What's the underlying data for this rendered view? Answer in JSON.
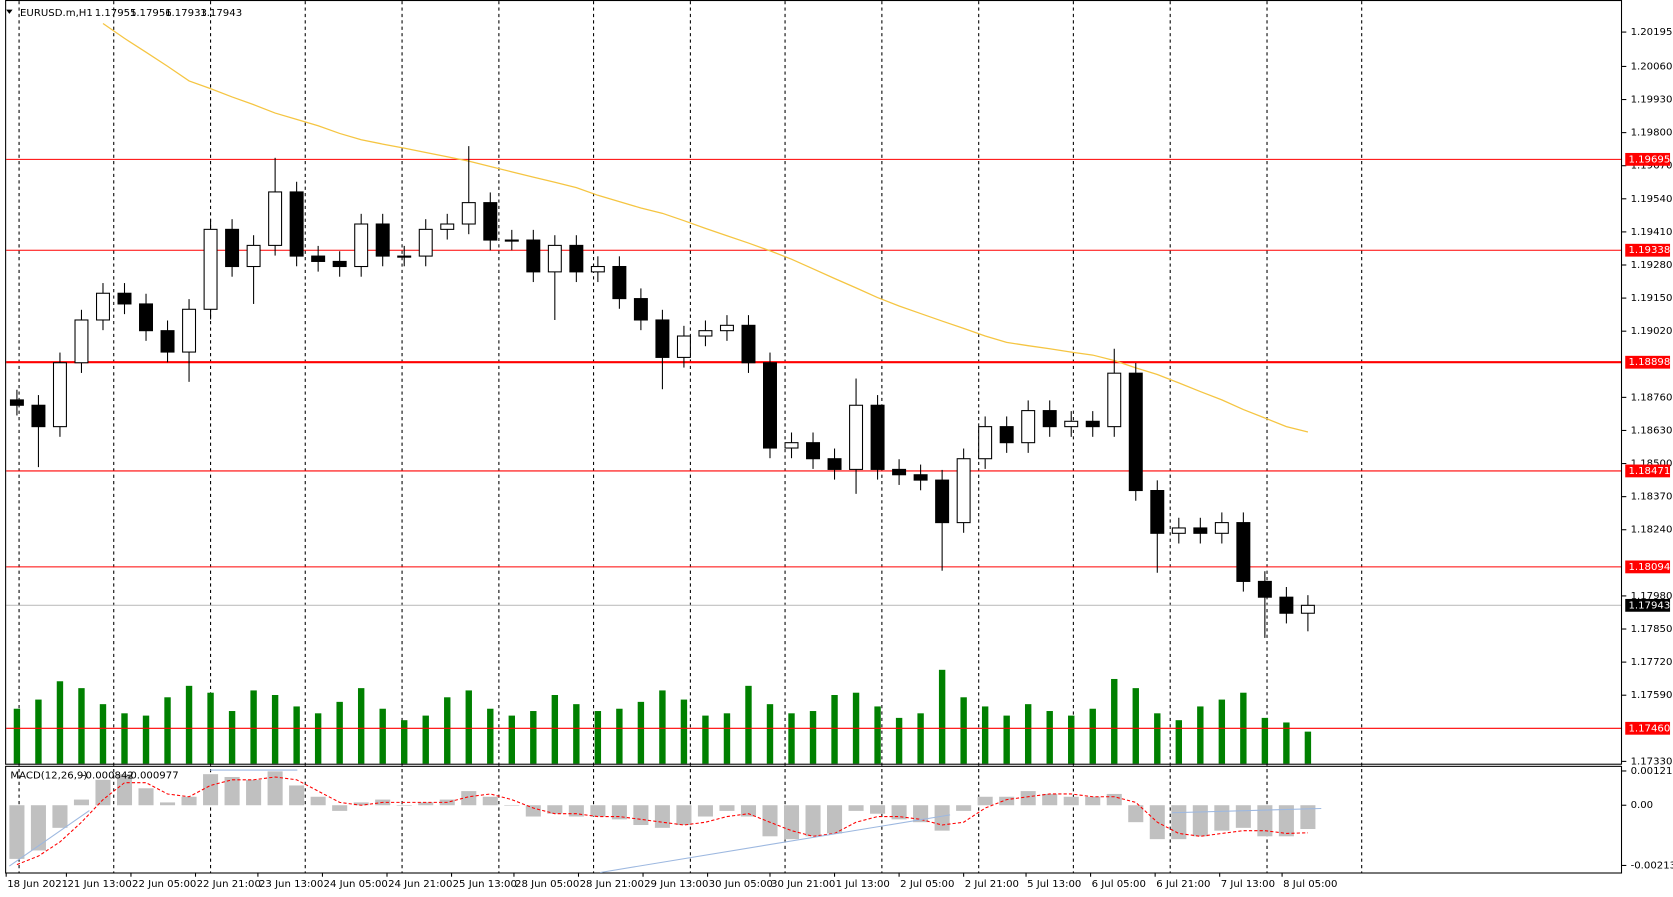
{
  "chart_data": {
    "type": "candlestick",
    "title": "EURUSD.m,H1",
    "header_ohlc": [
      1.17955,
      1.17956,
      1.17933,
      1.17943
    ],
    "color_up": "#ffffff",
    "color_down": "#000000",
    "candles": {
      "open": [
        1.1875,
        1.18729,
        1.18645,
        1.18896,
        1.19064,
        1.19169,
        1.19127,
        1.19022,
        1.18938,
        1.19106,
        1.1942,
        1.19274,
        1.19357,
        1.19567,
        1.19315,
        1.19294,
        1.19274,
        1.19441,
        1.19315,
        1.19315,
        1.1942,
        1.19441,
        1.19525,
        1.19378,
        1.19378,
        1.19253,
        1.19357,
        1.19253,
        1.19274,
        1.19148,
        1.19064,
        1.18917,
        1.19001,
        1.19022,
        1.19043,
        1.18896,
        1.18561,
        1.18582,
        1.18519,
        1.18477,
        1.18729,
        1.18477,
        1.18456,
        1.18435,
        1.18268,
        1.18519,
        1.18645,
        1.18582,
        1.18708,
        1.18645,
        1.18666,
        1.18645,
        1.18855,
        1.18394,
        1.18226,
        1.18247,
        1.18226,
        1.18268,
        1.18037,
        1.17975,
        1.17912
      ],
      "high": [
        1.1879,
        1.18769,
        1.18936,
        1.19104,
        1.19209,
        1.19209,
        1.19167,
        1.19062,
        1.19146,
        1.1946,
        1.1946,
        1.19397,
        1.19701,
        1.19607,
        1.19355,
        1.19334,
        1.19481,
        1.19481,
        1.19355,
        1.1946,
        1.19481,
        1.19747,
        1.19565,
        1.19418,
        1.19418,
        1.19397,
        1.19397,
        1.19314,
        1.19314,
        1.19188,
        1.19104,
        1.19041,
        1.19062,
        1.19083,
        1.19083,
        1.18936,
        1.18622,
        1.18622,
        1.18559,
        1.18834,
        1.18769,
        1.18517,
        1.18496,
        1.18475,
        1.18559,
        1.18685,
        1.18685,
        1.18748,
        1.18748,
        1.18706,
        1.18706,
        1.18951,
        1.18895,
        1.18434,
        1.18287,
        1.18287,
        1.18308,
        1.18308,
        1.18077,
        1.18015,
        1.17983
      ],
      "low": [
        1.18689,
        1.18486,
        1.18605,
        1.18856,
        1.19024,
        1.19087,
        1.18982,
        1.18898,
        1.18821,
        1.19066,
        1.19234,
        1.19127,
        1.19317,
        1.19275,
        1.19254,
        1.19234,
        1.19234,
        1.19275,
        1.19275,
        1.19275,
        1.1938,
        1.19401,
        1.19338,
        1.19338,
        1.19213,
        1.19064,
        1.19213,
        1.19213,
        1.19108,
        1.19024,
        1.18792,
        1.18877,
        1.18961,
        1.18982,
        1.18856,
        1.18521,
        1.18521,
        1.18479,
        1.18437,
        1.18381,
        1.18437,
        1.18416,
        1.18395,
        1.18079,
        1.18228,
        1.18479,
        1.18542,
        1.18542,
        1.18605,
        1.18605,
        1.18605,
        1.18605,
        1.18354,
        1.18071,
        1.18186,
        1.18186,
        1.18186,
        1.17997,
        1.17815,
        1.17872,
        1.17841
      ],
      "close": [
        1.18729,
        1.18645,
        1.18896,
        1.19064,
        1.19169,
        1.19127,
        1.19022,
        1.18938,
        1.19106,
        1.1942,
        1.19274,
        1.19357,
        1.19567,
        1.19315,
        1.19294,
        1.19274,
        1.19441,
        1.19315,
        1.19315,
        1.1942,
        1.19441,
        1.19525,
        1.19378,
        1.19378,
        1.19253,
        1.19357,
        1.19253,
        1.19274,
        1.19148,
        1.19064,
        1.18917,
        1.19001,
        1.19022,
        1.19043,
        1.18896,
        1.18561,
        1.18582,
        1.18519,
        1.18477,
        1.18729,
        1.18477,
        1.18456,
        1.18435,
        1.18268,
        1.18519,
        1.18645,
        1.18582,
        1.18708,
        1.18645,
        1.18666,
        1.18645,
        1.18855,
        1.18394,
        1.18226,
        1.18247,
        1.18226,
        1.18268,
        1.18037,
        1.17975,
        1.17912,
        1.17943
      ]
    },
    "xlim": [
      -0.5,
      74.6
    ],
    "xticks": [
      {
        "value": -0.5,
        "label": "18 Jun 2021"
      },
      {
        "value": 2.3,
        "label": "21 Jun 13:00"
      },
      {
        "value": 5.3,
        "label": "22 Jun 05:00"
      },
      {
        "value": 8.3,
        "label": "22 Jun 21:00"
      },
      {
        "value": 11.2,
        "label": "23 Jun 13:00"
      },
      {
        "value": 14.2,
        "label": "24 Jun 05:00"
      },
      {
        "value": 17.2,
        "label": "24 Jun 21:00"
      },
      {
        "value": 20.2,
        "label": "25 Jun 13:00"
      },
      {
        "value": 23.1,
        "label": "28 Jun 05:00"
      },
      {
        "value": 26.1,
        "label": "28 Jun 21:00"
      },
      {
        "value": 29.1,
        "label": "29 Jun 13:00"
      },
      {
        "value": 32.1,
        "label": "30 Jun 05:00"
      },
      {
        "value": 35.0,
        "label": "30 Jun 21:00"
      },
      {
        "value": 38.0,
        "label": "1 Jul 13:00"
      },
      {
        "value": 41.0,
        "label": "2 Jul 05:00"
      },
      {
        "value": 44.0,
        "label": "2 Jul 21:00"
      },
      {
        "value": 46.9,
        "label": "5 Jul 13:00"
      },
      {
        "value": 49.9,
        "label": "6 Jul 05:00"
      },
      {
        "value": 52.9,
        "label": "6 Jul 21:00"
      },
      {
        "value": 55.9,
        "label": "7 Jul 13:00"
      },
      {
        "value": 58.8,
        "label": "8 Jul 05:00"
      }
    ],
    "xgrid": [
      0.1,
      4.5,
      9.0,
      13.4,
      17.9,
      22.4,
      26.8,
      31.3,
      35.7,
      40.2,
      44.7,
      49.1,
      53.6,
      58.1,
      62.5
    ],
    "ylim": [
      1.17321,
      1.20321
    ],
    "yticks": [
      1.20195,
      {
        "value": 1.2006,
        "label": "1.20060"
      },
      {
        "value": 1.1993,
        "label": "1.19930"
      },
      {
        "value": 1.198,
        "label": "1.19800"
      },
      {
        "value": 1.1967,
        "label": "1.19670"
      },
      {
        "value": 1.1954,
        "label": "1.19540"
      },
      {
        "value": 1.1941,
        "label": "1.19410"
      },
      {
        "value": 1.1928,
        "label": "1.19280"
      },
      {
        "value": 1.1915,
        "label": "1.19150"
      },
      {
        "value": 1.1902,
        "label": "1.19020"
      },
      {
        "value": 1.1876,
        "label": "1.18760"
      },
      {
        "value": 1.1863,
        "label": "1.18630"
      },
      {
        "value": 1.185,
        "label": "1.18500"
      },
      {
        "value": 1.1837,
        "label": "1.18370"
      },
      {
        "value": 1.1824,
        "label": "1.18240"
      },
      {
        "value": 1.1798,
        "label": "1.17980"
      },
      {
        "value": 1.1785,
        "label": "1.17850"
      },
      {
        "value": 1.1772,
        "label": "1.17720"
      },
      {
        "value": 1.1759,
        "label": "1.17590"
      },
      {
        "value": 1.1733,
        "label": "1.17330"
      }
    ],
    "levels": {
      "color": "#ff0000",
      "values": [
        1.19695,
        1.19338,
        1.18898,
        1.18471,
        1.18094,
        {
          "value": 1.1746,
          "label": "1.17460"
        }
      ]
    },
    "moving_average": {
      "color": "#f5c542",
      "values": [
        null,
        null,
        null,
        null,
        1.20229,
        1.2017,
        1.20116,
        1.20061,
        1.20003,
        1.19973,
        1.1994,
        1.1991,
        1.19877,
        1.19852,
        1.19827,
        1.19797,
        1.19772,
        1.19755,
        1.19739,
        1.19722,
        1.19705,
        1.19688,
        1.19667,
        1.19646,
        1.19625,
        1.19605,
        1.19584,
        1.19554,
        1.19529,
        1.19504,
        1.19483,
        1.19454,
        1.19424,
        1.19395,
        1.19366,
        1.19336,
        1.19303,
        1.19265,
        1.19227,
        1.1919,
        1.19152,
        1.19119,
        1.19089,
        1.1906,
        1.19031,
        1.19001,
        1.18976,
        1.18963,
        1.18951,
        1.18938,
        1.18926,
        1.18905,
        1.18876,
        1.1885,
        1.18817,
        1.18783,
        1.1875,
        1.18712,
        1.18679,
        1.18645,
        1.18624
      ]
    },
    "volume": {
      "color": "#008000",
      "values": [
        2400,
        2800,
        3600,
        3300,
        2600,
        2200,
        2100,
        2900,
        3400,
        3100,
        2300,
        3200,
        3000,
        2500,
        2200,
        2700,
        3300,
        2400,
        1900,
        2100,
        2900,
        3200,
        2400,
        2100,
        2300,
        3000,
        2600,
        2300,
        2400,
        2700,
        3200,
        2800,
        2100,
        2200,
        3400,
        2600,
        2200,
        2300,
        3000,
        3100,
        2500,
        2000,
        2200,
        4100,
        2900,
        2500,
        2100,
        2600,
        2300,
        2100,
        2400,
        3700,
        3300,
        2200,
        1900,
        2500,
        2800,
        3100,
        2000,
        1800,
        1400
      ]
    },
    "macd": {
      "title": "MACD(12,26,9)",
      "ylim": [
        -0.00238,
        0.00132
      ],
      "yticks": [
        0.001213,
        {
          "value": 0,
          "label": "0.00"
        },
        -0.002132
      ],
      "histogram": {
        "color": "#c0c0c0",
        "values": [
          -0.0019,
          -0.0016,
          -0.0008,
          0.0002,
          0.0009,
          0.0011,
          0.0006,
          0.0001,
          0.0003,
          0.0011,
          0.001,
          0.0009,
          0.0012,
          0.0007,
          0.0003,
          -0.0002,
          0.0001,
          0.0002,
          0.0,
          0.0001,
          0.0002,
          0.0005,
          0.0003,
          0.0,
          -0.0004,
          -0.0003,
          -0.0004,
          -0.0004,
          -0.0005,
          -0.0007,
          -0.0008,
          -0.0007,
          -0.0004,
          -0.0002,
          -0.0004,
          -0.0011,
          -0.0012,
          -0.0011,
          -0.001,
          -0.0002,
          -0.0003,
          -0.0005,
          -0.0006,
          -0.0009,
          -0.0002,
          0.0003,
          0.0003,
          0.0005,
          0.0004,
          0.0003,
          0.0003,
          0.0004,
          -0.0006,
          -0.0012,
          -0.0012,
          -0.0011,
          -0.0009,
          -0.0008,
          -0.0011,
          -0.0011,
          -0.000842
        ]
      },
      "signal": {
        "color": "#ff0000",
        "values": [
          -0.0021,
          -0.0018,
          -0.0013,
          -0.0006,
          0.0002,
          0.0008,
          0.0008,
          0.0004,
          0.0003,
          0.0007,
          0.0009,
          0.0009,
          0.001,
          0.0009,
          0.0005,
          0.0001,
          0.0,
          0.0001,
          0.0001,
          0.0001,
          0.0001,
          0.0003,
          0.0004,
          0.0002,
          -0.0001,
          -0.0003,
          -0.0003,
          -0.0004,
          -0.0004,
          -0.0005,
          -0.0006,
          -0.0007,
          -0.0006,
          -0.0004,
          -0.0003,
          -0.0006,
          -0.0009,
          -0.0011,
          -0.001,
          -0.0006,
          -0.0004,
          -0.0004,
          -0.0005,
          -0.0007,
          -0.0006,
          -0.0001,
          0.0002,
          0.0003,
          0.0004,
          0.0004,
          0.0003,
          0.0003,
          0.0001,
          -0.0006,
          -0.001,
          -0.0011,
          -0.001,
          -0.0009,
          -0.0009,
          -0.001,
          -0.000977
        ]
      }
    }
  }
}
